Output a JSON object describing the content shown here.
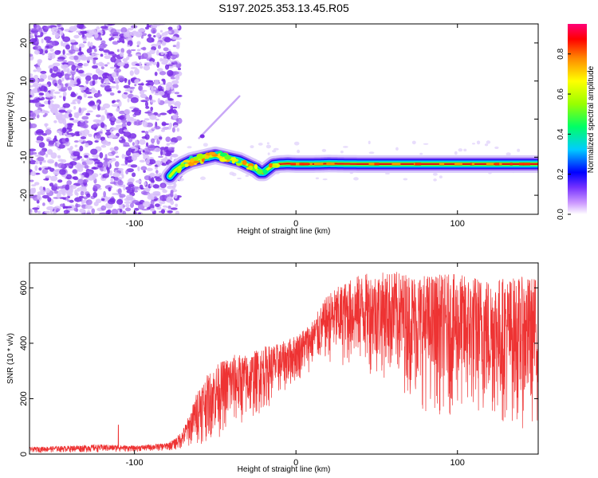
{
  "title": "S197.2025.353.13.45.R05",
  "colors": {
    "snr_line": "#ee3333",
    "axis": "#000000",
    "scatter_purple": "#8a2be2",
    "ridge_red": "#dd1111"
  },
  "chart_data": [
    {
      "type": "heatmap",
      "name": "spectrogram",
      "title": "S197.2025.353.13.45.R05",
      "xlabel": "Height of straight line (km)",
      "ylabel": "Frequency (Hz)",
      "xlim": [
        -165,
        150
      ],
      "ylim": [
        -25,
        25
      ],
      "xticks": [
        -100,
        0,
        100
      ],
      "yticks": [
        20,
        10,
        0,
        -10,
        -20
      ],
      "noise_region_x": [
        -165,
        -78
      ],
      "ridge": {
        "x": [
          -78,
          -75,
          -70,
          -65,
          -60,
          -55,
          -50,
          -45,
          -40,
          -35,
          -30,
          -25,
          -22,
          -20,
          -17,
          -14,
          -10,
          -5,
          0,
          10,
          20,
          40,
          60,
          80,
          100,
          120,
          150
        ],
        "y": [
          -15,
          -13.5,
          -12,
          -11,
          -10.5,
          -10,
          -9.5,
          -10,
          -10.5,
          -11,
          -12,
          -13,
          -14,
          -14,
          -13,
          -12,
          -11.8,
          -11.7,
          -11.8,
          -11.8,
          -11.7,
          -11.8,
          -11.8,
          -11.8,
          -11.8,
          -11.8,
          -11.8
        ]
      },
      "streak": {
        "x": [
          -60,
          -35
        ],
        "y": [
          -5,
          6
        ]
      },
      "colorbar": {
        "label": "Normalized spectral amplitude",
        "ticks": [
          0.0,
          0.2,
          0.4,
          0.6,
          0.8
        ],
        "range": [
          0.0,
          0.95
        ]
      }
    },
    {
      "type": "line",
      "name": "snr",
      "xlabel": "Height of straight line (km)",
      "ylabel": "SNR (10 * v/v)",
      "xlim": [
        -165,
        150
      ],
      "ylim": [
        0,
        690
      ],
      "xticks": [
        -100,
        0,
        100
      ],
      "yticks": [
        0,
        200,
        400,
        600
      ],
      "envelope": {
        "x": [
          -165,
          -120,
          -100,
          -80,
          -75,
          -70,
          -65,
          -60,
          -50,
          -40,
          -30,
          -20,
          -10,
          0,
          10,
          20,
          30,
          40,
          60,
          80,
          100,
          120,
          150
        ],
        "upper": [
          25,
          35,
          30,
          40,
          55,
          90,
          160,
          250,
          320,
          360,
          360,
          390,
          400,
          430,
          480,
          580,
          620,
          650,
          660,
          650,
          650,
          640,
          640
        ],
        "lower": [
          5,
          5,
          8,
          10,
          12,
          15,
          20,
          30,
          50,
          80,
          100,
          150,
          200,
          250,
          300,
          320,
          300,
          300,
          250,
          150,
          120,
          100,
          80
        ]
      },
      "spike": {
        "x": -110,
        "y": 105
      }
    }
  ]
}
